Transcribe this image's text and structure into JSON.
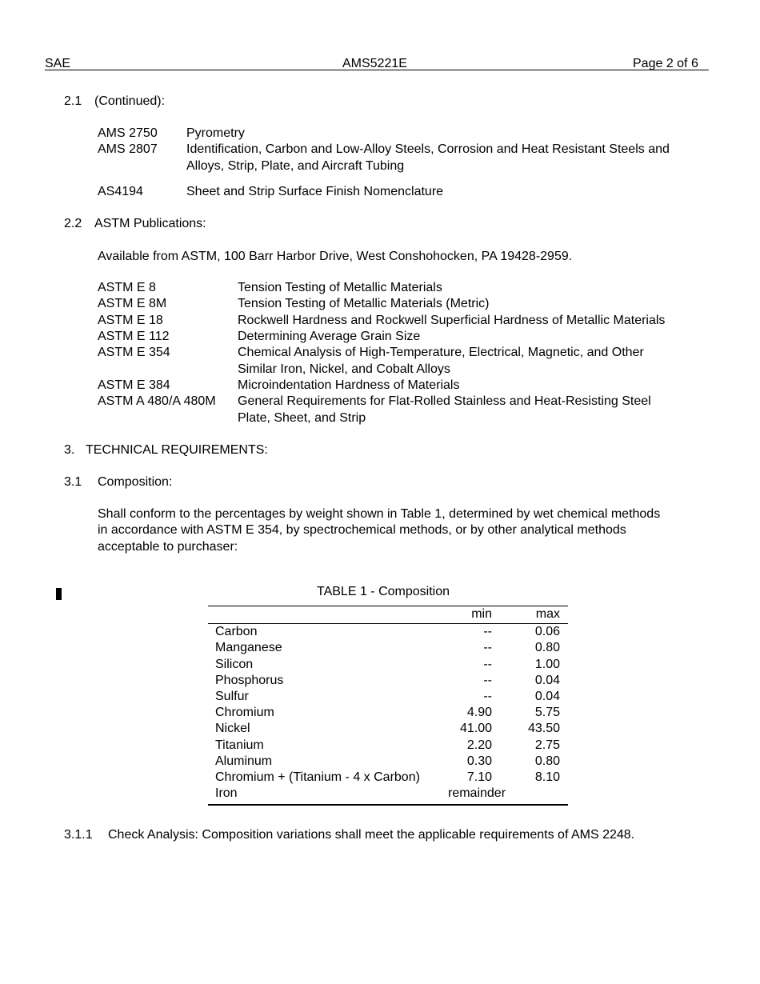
{
  "header": {
    "left": "SAE",
    "center": "AMS5221E",
    "right": "Page 2 of 6"
  },
  "s2_1": {
    "num": "2.1",
    "title": "(Continued):",
    "refs": [
      {
        "code": "AMS 2750",
        "lines": [
          "Pyrometry"
        ]
      },
      {
        "code": "AMS 2807",
        "lines": [
          "Identification, Carbon and Low-Alloy Steels, Corrosion and Heat Resistant Steels and",
          "Alloys, Strip, Plate, and Aircraft Tubing"
        ]
      },
      {
        "code": "AS4194",
        "lines": [
          "Sheet and Strip Surface Finish Nomenclature"
        ]
      }
    ]
  },
  "s2_2": {
    "num": "2.2",
    "title": "ASTM Publications:",
    "available": "Available from ASTM, 100 Barr Harbor Drive, West Conshohocken, PA  19428-2959.",
    "refs": [
      {
        "code": "ASTM E 8",
        "lines": [
          "Tension Testing of Metallic Materials"
        ]
      },
      {
        "code": "ASTM E 8M",
        "lines": [
          "Tension Testing of Metallic Materials (Metric)"
        ]
      },
      {
        "code": "ASTM E 18",
        "lines": [
          "Rockwell Hardness and Rockwell Superficial Hardness of Metallic Materials"
        ]
      },
      {
        "code": "ASTM E 112",
        "lines": [
          "Determining Average Grain Size"
        ]
      },
      {
        "code": "ASTM E 354",
        "lines": [
          "Chemical Analysis of High-Temperature, Electrical, Magnetic, and Other",
          "Similar Iron, Nickel, and Cobalt Alloys"
        ]
      },
      {
        "code": "ASTM E 384",
        "lines": [
          "Microindentation Hardness of Materials"
        ]
      },
      {
        "code": "ASTM A 480/A 480M",
        "lines": [
          "General Requirements for Flat-Rolled Stainless and Heat-Resisting Steel",
          "Plate, Sheet, and Strip"
        ]
      }
    ]
  },
  "s3": {
    "num": "3.",
    "title": "TECHNICAL REQUIREMENTS:"
  },
  "s3_1": {
    "num": "3.1",
    "title": "Composition:",
    "para": [
      "Shall conform to the percentages by weight shown in Table 1, determined by wet chemical methods",
      "in accordance with ASTM E 354, by spectrochemical methods, or by other analytical methods",
      "acceptable to purchaser:"
    ]
  },
  "table": {
    "title": "TABLE 1 - Composition",
    "headers": [
      "",
      "min",
      "max"
    ],
    "rows": [
      [
        "Carbon",
        "--",
        "0.06"
      ],
      [
        "Manganese",
        "--",
        "0.80"
      ],
      [
        "Silicon",
        "--",
        "1.00"
      ],
      [
        "Phosphorus",
        "--",
        "0.04"
      ],
      [
        "Sulfur",
        "--",
        "0.04"
      ],
      [
        "Chromium",
        "4.90",
        "5.75"
      ],
      [
        "Nickel",
        "41.00",
        "43.50"
      ],
      [
        "Titanium",
        "2.20",
        "2.75"
      ],
      [
        "Aluminum",
        "0.30",
        "0.80"
      ],
      [
        "Chromium + (Titanium - 4 x Carbon)",
        "7.10",
        "8.10"
      ],
      [
        "Iron",
        "remainder",
        ""
      ]
    ]
  },
  "s3_1_1": {
    "num": "3.1.1",
    "text": "Check Analysis: Composition variations shall meet the applicable requirements of AMS 2248."
  }
}
